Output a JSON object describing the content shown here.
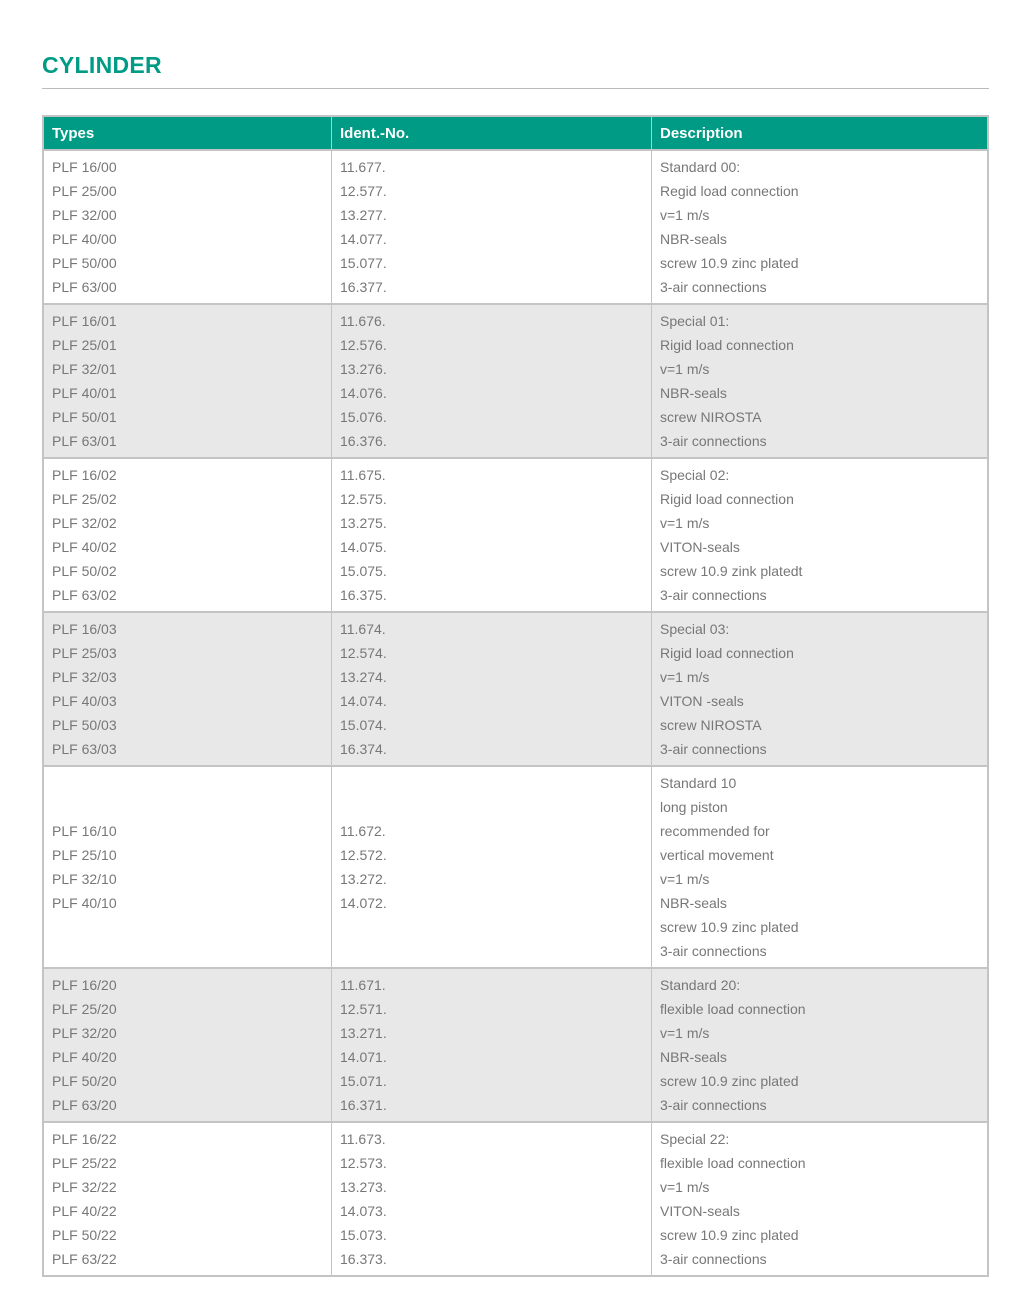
{
  "title": "CYLINDER",
  "table": {
    "headers": [
      "Types",
      "Ident.-No.",
      "Description"
    ],
    "groups": [
      {
        "types": [
          "PLF 16/00",
          "PLF 25/00",
          "PLF 32/00",
          "PLF 40/00",
          "PLF 50/00",
          "PLF 63/00"
        ],
        "ids": [
          "11.677.",
          "12.577.",
          "13.277.",
          "14.077.",
          "15.077.",
          "16.377."
        ],
        "description": [
          "Standard 00:",
          "Regid load connection",
          "v=1 m/s",
          "NBR-seals",
          "screw 10.9 zinc plated",
          "3-air connections"
        ]
      },
      {
        "types": [
          "PLF 16/01",
          "PLF 25/01",
          "PLF 32/01",
          "PLF 40/01",
          "PLF 50/01",
          "PLF 63/01"
        ],
        "ids": [
          "11.676.",
          "12.576.",
          "13.276.",
          "14.076.",
          "15.076.",
          "16.376."
        ],
        "description": [
          "Special 01:",
          "Rigid load connection",
          "v=1 m/s",
          "NBR-seals",
          "screw NIROSTA",
          "3-air connections"
        ]
      },
      {
        "types": [
          "PLF 16/02",
          "PLF 25/02",
          "PLF 32/02",
          "PLF 40/02",
          "PLF 50/02",
          "PLF 63/02"
        ],
        "ids": [
          "11.675.",
          "12.575.",
          "13.275.",
          "14.075.",
          "15.075.",
          "16.375."
        ],
        "description": [
          "Special 02:",
          "Rigid load connection",
          "v=1 m/s",
          "VITON-seals",
          "screw 10.9 zink platedt",
          "3-air connections"
        ]
      },
      {
        "types": [
          "PLF 16/03",
          "PLF 25/03",
          "PLF 32/03",
          "PLF 40/03",
          "PLF 50/03",
          "PLF 63/03"
        ],
        "ids": [
          "11.674.",
          "12.574.",
          "13.274.",
          "14.074.",
          "15.074.",
          "16.374."
        ],
        "description": [
          "Special 03:",
          "Rigid load connection",
          "v=1 m/s",
          "VITON -seals",
          "screw NIROSTA",
          "3-air connections"
        ]
      },
      {
        "types": [
          "PLF 16/10",
          "PLF 25/10",
          "PLF 32/10",
          "PLF 40/10"
        ],
        "ids": [
          "11.672.",
          "12.572.",
          "13.272.",
          "14.072."
        ],
        "description": [
          "Standard 10",
          "long piston",
          "recommended for",
          "vertical movement",
          "v=1 m/s",
          "NBR-seals",
          "screw 10.9 zinc plated",
          "3-air connections"
        ]
      },
      {
        "types": [
          "PLF 16/20",
          "PLF 25/20",
          "PLF 32/20",
          "PLF 40/20",
          "PLF 50/20",
          "PLF 63/20"
        ],
        "ids": [
          "11.671.",
          "12.571.",
          "13.271.",
          "14.071.",
          "15.071.",
          "16.371."
        ],
        "description": [
          "Standard 20:",
          "flexible load connection",
          "v=1 m/s",
          "NBR-seals",
          "screw 10.9 zinc plated",
          "3-air connections"
        ]
      },
      {
        "types": [
          "PLF 16/22",
          "PLF 25/22",
          "PLF 32/22",
          "PLF 40/22",
          "PLF 50/22",
          "PLF 63/22"
        ],
        "ids": [
          "11.673.",
          "12.573.",
          "13.273.",
          "14.073.",
          "15.073.",
          "16.373."
        ],
        "description": [
          "Special 22:",
          "flexible load connection",
          "v=1 m/s",
          "VITON-seals",
          "screw 10.9 zinc plated",
          "3-air connections"
        ]
      }
    ]
  },
  "colors": {
    "accent": "#009b84",
    "alt_row": "#e8e8e8",
    "text": "#777777"
  }
}
